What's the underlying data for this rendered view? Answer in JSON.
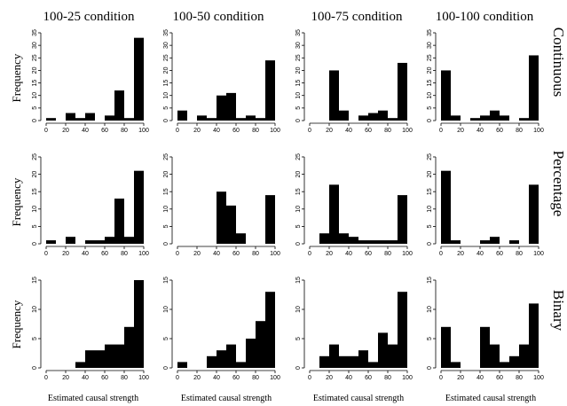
{
  "chart_data": {
    "type": "bar",
    "layout": "grid",
    "column_titles": [
      "100-25 condition",
      "100-50 condition",
      "100-75 condition",
      "100-100 condition"
    ],
    "row_titles": [
      "Continuous",
      "Percentage",
      "Binary"
    ],
    "ylabel": "Frequency",
    "xlabel": "Estimated causal strength",
    "xlim": [
      0,
      100
    ],
    "xticks": [
      0,
      20,
      40,
      60,
      80,
      100
    ],
    "bin_width": 10,
    "bins": [
      0,
      10,
      20,
      30,
      40,
      50,
      60,
      70,
      80,
      90
    ],
    "panels": [
      {
        "row": "Continuous",
        "column": "100-25 condition",
        "ylim": [
          0,
          35
        ],
        "yticks": [
          0,
          5,
          10,
          15,
          20,
          25,
          30,
          35
        ],
        "values": [
          1,
          0,
          3,
          1,
          3,
          0,
          2,
          12,
          1,
          33
        ]
      },
      {
        "row": "Continuous",
        "column": "100-50 condition",
        "ylim": [
          0,
          35
        ],
        "yticks": [
          0,
          5,
          10,
          15,
          20,
          25,
          30,
          35
        ],
        "values": [
          4,
          0,
          2,
          1,
          10,
          11,
          1,
          2,
          1,
          24
        ]
      },
      {
        "row": "Continuous",
        "column": "100-75 condition",
        "ylim": [
          0,
          35
        ],
        "yticks": [
          0,
          5,
          10,
          15,
          20,
          25,
          30,
          35
        ],
        "values": [
          0,
          0,
          20,
          4,
          0,
          2,
          3,
          4,
          1,
          23
        ]
      },
      {
        "row": "Continuous",
        "column": "100-100 condition",
        "ylim": [
          0,
          35
        ],
        "yticks": [
          0,
          5,
          10,
          15,
          20,
          25,
          30,
          35
        ],
        "values": [
          20,
          2,
          0,
          1,
          2,
          4,
          2,
          0,
          1,
          26
        ]
      },
      {
        "row": "Percentage",
        "column": "100-25 condition",
        "ylim": [
          0,
          25
        ],
        "yticks": [
          0,
          5,
          10,
          15,
          20,
          25
        ],
        "values": [
          1,
          0,
          2,
          0,
          1,
          1,
          2,
          13,
          2,
          21
        ]
      },
      {
        "row": "Percentage",
        "column": "100-50 condition",
        "ylim": [
          0,
          25
        ],
        "yticks": [
          0,
          5,
          10,
          15,
          20,
          25
        ],
        "values": [
          0,
          0,
          0,
          0,
          15,
          11,
          3,
          0,
          0,
          14
        ]
      },
      {
        "row": "Percentage",
        "column": "100-75 condition",
        "ylim": [
          0,
          25
        ],
        "yticks": [
          0,
          5,
          10,
          15,
          20,
          25
        ],
        "values": [
          0,
          3,
          17,
          3,
          2,
          1,
          1,
          1,
          1,
          14
        ]
      },
      {
        "row": "Percentage",
        "column": "100-100 condition",
        "ylim": [
          0,
          25
        ],
        "yticks": [
          0,
          5,
          10,
          15,
          20,
          25
        ],
        "values": [
          21,
          1,
          0,
          0,
          1,
          2,
          0,
          1,
          0,
          17
        ]
      },
      {
        "row": "Binary",
        "column": "100-25 condition",
        "ylim": [
          0,
          15
        ],
        "yticks": [
          0,
          5,
          10,
          15
        ],
        "values": [
          0,
          0,
          0,
          1,
          3,
          3,
          4,
          4,
          7,
          15
        ]
      },
      {
        "row": "Binary",
        "column": "100-50 condition",
        "ylim": [
          0,
          15
        ],
        "yticks": [
          0,
          5,
          10,
          15
        ],
        "values": [
          1,
          0,
          0,
          2,
          3,
          4,
          1,
          5,
          8,
          13
        ]
      },
      {
        "row": "Binary",
        "column": "100-75 condition",
        "ylim": [
          0,
          15
        ],
        "yticks": [
          0,
          5,
          10,
          15
        ],
        "values": [
          0,
          2,
          4,
          2,
          2,
          3,
          1,
          6,
          4,
          13
        ]
      },
      {
        "row": "Binary",
        "column": "100-100 condition",
        "ylim": [
          0,
          15
        ],
        "yticks": [
          0,
          5,
          10,
          15
        ],
        "values": [
          7,
          1,
          0,
          0,
          7,
          4,
          1,
          2,
          4,
          11
        ]
      }
    ]
  }
}
